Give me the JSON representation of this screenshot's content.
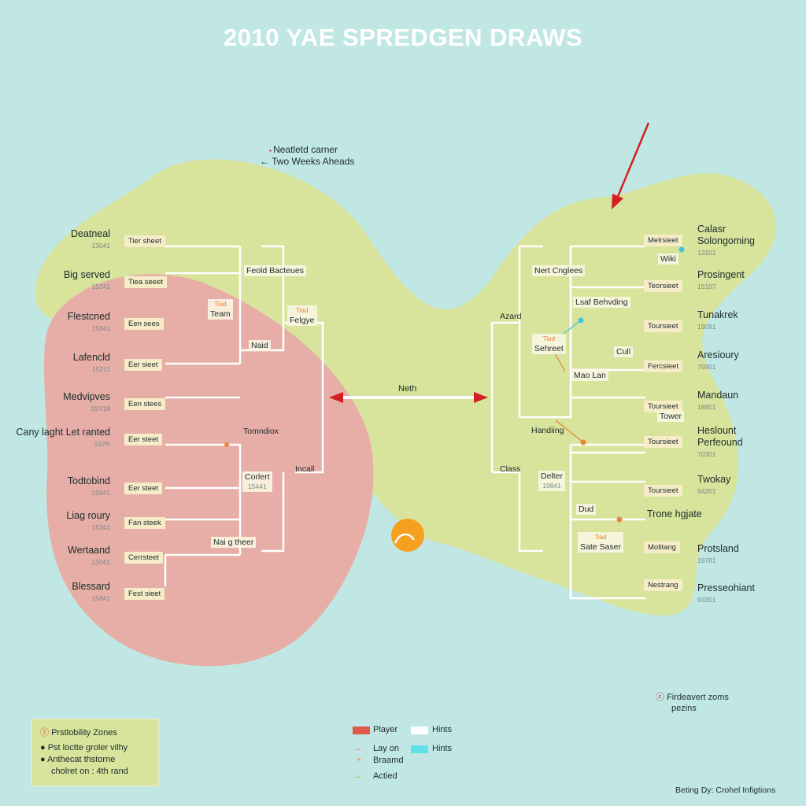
{
  "title": "2010 YAE SPREDGEN DRAWS",
  "annotation": {
    "line1": "Neatletd carner",
    "line2": "Two Weeks Aheads"
  },
  "center_label": "Neth",
  "colors": {
    "background": "#c0e7e4",
    "green_zone": "#d8e39c",
    "red_zone": "#e6aea6",
    "arrow": "#d42020",
    "bracket_line": "#ffffff",
    "accent_orange": "#e8843c",
    "accent_cyan": "#3ec6d8"
  },
  "left": {
    "players": [
      {
        "name": "Deatneal",
        "seed": "13041",
        "tag": "Tier sheet"
      },
      {
        "name": "Big served",
        "seed": "15241",
        "tag": "Tiea seeet"
      },
      {
        "name": "Flestcned",
        "seed": "15341",
        "tag": "Een sees"
      },
      {
        "name": "Lafencld",
        "seed": "15211",
        "tag": "Eer sieet"
      },
      {
        "name": "Medvipves",
        "seed": "15Y18",
        "tag": "Een stees"
      },
      {
        "name": "Cany laght Let ranted",
        "seed": "197N",
        "tag": "Eer steet"
      },
      {
        "name": "Todtobind",
        "seed": "15841",
        "tag": "Eer steet"
      },
      {
        "name": "Liag roury",
        "seed": "15341",
        "tag": "Fan steek"
      },
      {
        "name": "Wertaand",
        "seed": "13041",
        "tag": "Cerrsteet"
      },
      {
        "name": "Blessard",
        "seed": "15841",
        "tag": "Fest sieet"
      }
    ],
    "rounds": [
      {
        "label": "Feold Bacteues"
      },
      {
        "label": "Team",
        "note": "Tiad"
      },
      {
        "label": "Felgye",
        "note": "Tiad"
      },
      {
        "label": "Naid"
      },
      {
        "label": "Tomndiox"
      },
      {
        "label": "Corlert",
        "seed": "15441"
      },
      {
        "label": "Nai g theer"
      },
      {
        "label": "Incall"
      }
    ]
  },
  "right": {
    "players": [
      {
        "name": "Calasr Solongoming",
        "seed": "13101",
        "tag": "Melrsieet"
      },
      {
        "name": "Prosingent",
        "seed": "15107",
        "tag": "Teorsieet"
      },
      {
        "name": "Tunakrek",
        "seed": "19091",
        "tag": "Toursieet"
      },
      {
        "name": "Aresioury",
        "seed": "79901",
        "tag": "Fercsieet"
      },
      {
        "name": "Mandaun",
        "seed": "18801",
        "tag": "Toursieet"
      },
      {
        "name": "Heslount Perfeound",
        "seed": "70301",
        "tag": "Toursieet"
      },
      {
        "name": "Twokay",
        "seed": "94201",
        "tag": "Toursieet"
      },
      {
        "name": "Trone hgjate",
        "seed": "",
        "tag": ""
      },
      {
        "name": "Protsland",
        "seed": "19781",
        "tag": "Molitang"
      },
      {
        "name": "Presseohiant",
        "seed": "93301",
        "tag": "Nestrang"
      }
    ],
    "rounds": [
      {
        "label": "Nert Cnglees"
      },
      {
        "label": "Wiki"
      },
      {
        "label": "Lsaf Behvding"
      },
      {
        "label": "Sehreet",
        "note": "Tiad"
      },
      {
        "label": "Cull"
      },
      {
        "label": "Mao Lan"
      },
      {
        "label": "Tower"
      },
      {
        "label": "Handiing"
      },
      {
        "label": "Delter",
        "seed": "19841"
      },
      {
        "label": "Dud"
      },
      {
        "label": "Sate Saser",
        "note": "Tiad"
      },
      {
        "label": "Azard"
      },
      {
        "label": "Class"
      }
    ]
  },
  "legend_box": {
    "title": "Prstlobility Zones",
    "item1": "Pst loctte groler vilhy",
    "item2a": "Anthecat thstorne",
    "item2b": "cholret on : 4th rand"
  },
  "legend_mid": {
    "player": "Player",
    "hints1": "Hints",
    "lay_on": "Lay on",
    "hints2": "Hints",
    "braand": "Braamd",
    "actied": "Actied",
    "player_color": "#e05848",
    "hints1_color": "#ffffff",
    "hints2_color": "#5fe0ea"
  },
  "legend_right": {
    "line1": "Firdeavert zoms",
    "line2": "pezins"
  },
  "footer": "Beting Dy: Crohel Infigtions"
}
